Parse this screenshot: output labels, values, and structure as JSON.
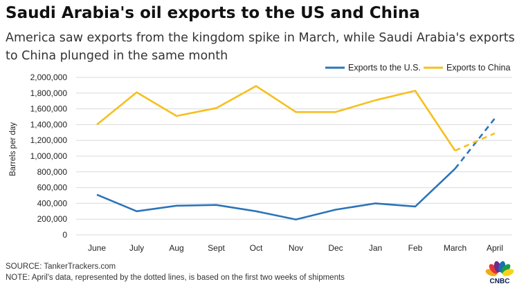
{
  "header": {
    "title": "Saudi Arabia's oil exports to the US and China",
    "subtitle": "America saw exports from the kingdom spike in March, while Saudi Arabia's exports to China plunged in the same month"
  },
  "chart_data": {
    "type": "line",
    "title": "Saudi Arabia's oil exports to the US and China",
    "subtitle": "America saw exports from the kingdom spike in March, while Saudi Arabia's exports to China plunged in the same month",
    "categories": [
      "June",
      "July",
      "Aug",
      "Sept",
      "Oct",
      "Nov",
      "Dec",
      "Jan",
      "Feb",
      "March",
      "April"
    ],
    "ylabel": "Barrels per day",
    "ylim": [
      0,
      2000000
    ],
    "yticks": [
      0,
      200000,
      400000,
      600000,
      800000,
      1000000,
      1200000,
      1400000,
      1600000,
      1800000,
      2000000
    ],
    "ytick_labels": [
      "0",
      "200,000",
      "400,000",
      "600,000",
      "800,000",
      "1,000,000",
      "1,200,000",
      "1,400,000",
      "1,600,000",
      "1,800,000",
      "2,000,000"
    ],
    "grid": true,
    "legend": "top-right",
    "dashed_from_category": "March",
    "series": [
      {
        "name": "Exports to the U.S.",
        "color": "#2b74b8",
        "values": [
          510000,
          300000,
          370000,
          380000,
          300000,
          195000,
          320000,
          400000,
          360000,
          840000,
          1480000
        ]
      },
      {
        "name": "Exports to China",
        "color": "#f6bf1c",
        "values": [
          1400000,
          1810000,
          1510000,
          1610000,
          1890000,
          1560000,
          1560000,
          1710000,
          1830000,
          1070000,
          1290000
        ]
      }
    ]
  },
  "footer": {
    "source": "SOURCE:  TankerTrackers.com",
    "note": "NOTE: April's data, represented by the dotted lines, is based on the first two weeks of shipments"
  },
  "brand": {
    "logo_text": "CNBC",
    "peacock_colors": [
      "#f5a81c",
      "#e2343a",
      "#6d2c8c",
      "#1a6fb4",
      "#1a9b4a",
      "#f7d417"
    ]
  }
}
